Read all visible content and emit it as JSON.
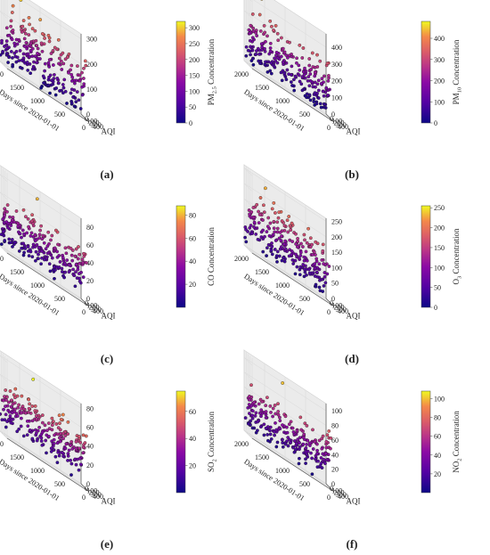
{
  "figure": {
    "panel_letters": [
      "(a)",
      "(b)",
      "(c)",
      "(d)",
      "(e)",
      "(f)"
    ],
    "shared_axes": {
      "x_label": "Days since 2020-01-01",
      "y_label": "AQI",
      "x_ticks": [
        "2000",
        "1500",
        "1000",
        "500",
        "0"
      ],
      "y_ticks": [
        "0",
        "100",
        "200",
        "300",
        "400"
      ]
    }
  },
  "chart_data": [
    {
      "type": "scatter",
      "panel": "(a)",
      "xlabel": "Days since 2020-01-01",
      "ylabel": "AQI",
      "zlabel": "PM2.5 Concentration",
      "zlabel_main": "PM",
      "zlabel_sub": "2.5",
      "zlabel_rest": " Concentration",
      "xlim": [
        0,
        2000
      ],
      "ylim": [
        0,
        400
      ],
      "zlim": [
        0,
        320
      ],
      "xticks": [
        0,
        500,
        1000,
        1500,
        2000
      ],
      "yticks": [
        0,
        100,
        200,
        300,
        400
      ],
      "zticks": [
        0,
        100,
        200,
        300
      ],
      "cbar_ticks": [
        0,
        50,
        100,
        150,
        200,
        250,
        300
      ],
      "cbar_range": [
        0,
        320
      ],
      "colormap": "plasma",
      "trend": {
        "z_per_aqi": 0.72,
        "z_offset": 0,
        "noise": 12,
        "aqi_max": 380,
        "points": 230
      },
      "outliers": [
        [
          1500,
          60,
          300
        ],
        [
          1250,
          60,
          120
        ],
        [
          900,
          240,
          70
        ],
        [
          400,
          360,
          30
        ]
      ]
    },
    {
      "type": "scatter",
      "panel": "(b)",
      "xlabel": "Days since 2020-01-01",
      "ylabel": "AQI",
      "zlabel": "PM10 Concentration",
      "zlabel_main": "PM",
      "zlabel_sub": "10",
      "zlabel_rest": " Concentration",
      "xlim": [
        0,
        2000
      ],
      "ylim": [
        0,
        400
      ],
      "zlim": [
        0,
        480
      ],
      "xticks": [
        0,
        500,
        1000,
        1500,
        2000
      ],
      "yticks": [
        0,
        100,
        200,
        300,
        400
      ],
      "zticks": [
        0,
        100,
        200,
        300,
        400
      ],
      "cbar_ticks": [
        0,
        100,
        200,
        300,
        400
      ],
      "cbar_range": [
        0,
        480
      ],
      "colormap": "plasma",
      "trend": {
        "z_per_aqi": 0.95,
        "z_offset": 0,
        "noise": 18,
        "aqi_max": 380,
        "points": 230
      },
      "outliers": [
        [
          1600,
          60,
          440
        ],
        [
          1400,
          70,
          340
        ],
        [
          1200,
          80,
          160
        ],
        [
          700,
          250,
          60
        ],
        [
          400,
          350,
          40
        ]
      ]
    },
    {
      "type": "scatter",
      "panel": "(c)",
      "xlabel": "Days since 2020-01-01",
      "ylabel": "AQI",
      "zlabel": "CO Concentration",
      "xlim": [
        0,
        2000
      ],
      "ylim": [
        0,
        400
      ],
      "zlim": [
        0,
        90
      ],
      "xticks": [
        0,
        500,
        1000,
        1500,
        2000
      ],
      "yticks": [
        0,
        100,
        200,
        300,
        400
      ],
      "zticks": [
        0,
        20,
        40,
        60,
        80
      ],
      "cbar_ticks": [
        20,
        40,
        60,
        80
      ],
      "cbar_range": [
        0,
        88
      ],
      "colormap": "plasma",
      "trend": {
        "z_per_aqi": 0.16,
        "z_offset": 8,
        "noise": 8,
        "aqi_max": 320,
        "points": 230
      },
      "outliers": [
        [
          1600,
          10,
          15
        ],
        [
          1400,
          20,
          10
        ],
        [
          1100,
          60,
          80
        ],
        [
          800,
          300,
          5
        ]
      ]
    },
    {
      "type": "scatter",
      "panel": "(d)",
      "xlabel": "Days since 2020-01-01",
      "ylabel": "AQI",
      "zlabel": "O3 Concentration",
      "zlabel_main": "O",
      "zlabel_sub": "3",
      "zlabel_rest": " Concentration",
      "xlim": [
        0,
        2000
      ],
      "ylim": [
        0,
        400
      ],
      "zlim": [
        0,
        260
      ],
      "xticks": [
        0,
        500,
        1000,
        1500,
        2000
      ],
      "yticks": [
        0,
        100,
        200,
        300,
        400
      ],
      "zticks": [
        0,
        50,
        100,
        150,
        200,
        250
      ],
      "cbar_ticks": [
        0,
        50,
        100,
        150,
        200,
        250
      ],
      "cbar_range": [
        0,
        255
      ],
      "colormap": "plasma",
      "trend": {
        "z_per_aqi": 0.55,
        "z_offset": 20,
        "noise": 22,
        "aqi_max": 330,
        "points": 240
      },
      "outliers": [
        [
          1500,
          40,
          230
        ],
        [
          1300,
          50,
          200
        ],
        [
          600,
          250,
          40
        ],
        [
          300,
          320,
          20
        ]
      ]
    },
    {
      "type": "scatter",
      "panel": "(e)",
      "xlabel": "Days since 2020-01-01",
      "ylabel": "AQI",
      "zlabel": "SO2 Concentration",
      "zlabel_main": "SO",
      "zlabel_sub": "2",
      "zlabel_rest": " Concentration",
      "xlim": [
        0,
        2000
      ],
      "ylim": [
        0,
        400
      ],
      "zlim": [
        0,
        85
      ],
      "xticks": [
        0,
        500,
        1000,
        1500,
        2000
      ],
      "yticks": [
        0,
        100,
        200,
        300,
        400
      ],
      "zticks": [
        0,
        20,
        40,
        60,
        80
      ],
      "cbar_ticks": [
        20,
        40,
        60
      ],
      "cbar_range": [
        0,
        75
      ],
      "colormap": "plasma",
      "trend": {
        "z_per_aqi": 0.14,
        "z_offset": 14,
        "noise": 9,
        "aqi_max": 330,
        "points": 230
      },
      "outliers": [
        [
          1700,
          20,
          40
        ],
        [
          1200,
          60,
          78
        ],
        [
          700,
          250,
          8
        ],
        [
          400,
          330,
          5
        ]
      ]
    },
    {
      "type": "scatter",
      "panel": "(f)",
      "xlabel": "Days since 2020-01-01",
      "ylabel": "AQI",
      "zlabel": "NO2 Concentration",
      "zlabel_main": "NO",
      "zlabel_sub": "2",
      "zlabel_rest": " Concentration",
      "xlim": [
        0,
        2000
      ],
      "ylim": [
        0,
        400
      ],
      "zlim": [
        0,
        110
      ],
      "xticks": [
        0,
        500,
        1000,
        1500,
        2000
      ],
      "yticks": [
        0,
        100,
        200,
        300,
        400
      ],
      "zticks": [
        0,
        20,
        40,
        60,
        80,
        100
      ],
      "cbar_ticks": [
        20,
        40,
        60,
        80,
        100
      ],
      "cbar_range": [
        0,
        108
      ],
      "colormap": "plasma",
      "trend": {
        "z_per_aqi": 0.2,
        "z_offset": 10,
        "noise": 10,
        "aqi_max": 320,
        "points": 230
      },
      "outliers": [
        [
          1600,
          20,
          20
        ],
        [
          1100,
          80,
          100
        ],
        [
          800,
          280,
          6
        ],
        [
          500,
          330,
          4
        ]
      ]
    }
  ]
}
